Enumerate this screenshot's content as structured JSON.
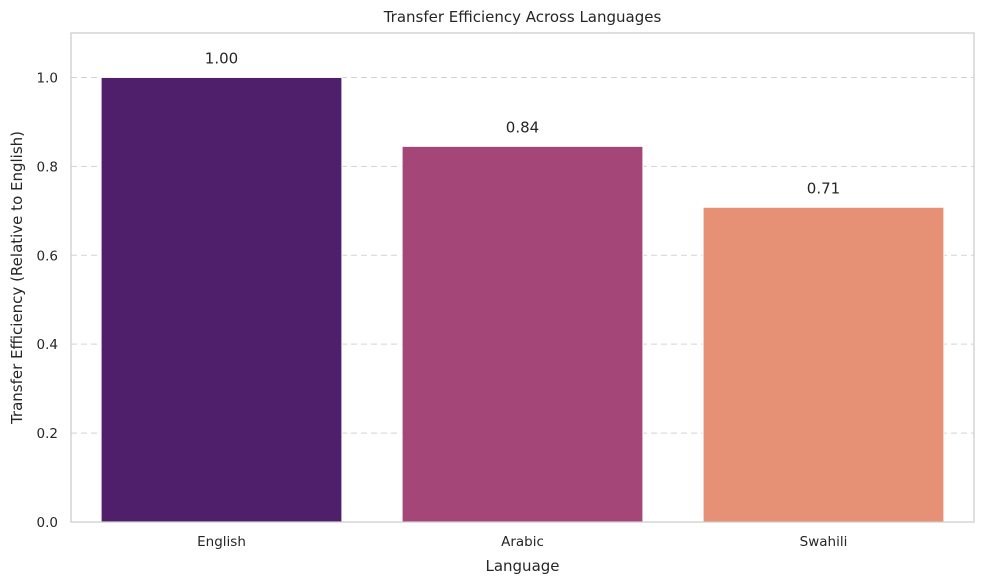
{
  "chart_data": {
    "type": "bar",
    "title": "Transfer Efficiency Across Languages",
    "xlabel": "Language",
    "ylabel": "Transfer Efficiency (Relative to English)",
    "categories": [
      "English",
      "Arabic",
      "Swahili"
    ],
    "values": [
      1.0,
      0.845,
      0.708
    ],
    "data_labels": [
      "1.00",
      "0.84",
      "0.71"
    ],
    "colors": [
      "#4f1f6c",
      "#a44677",
      "#e69076"
    ],
    "ylim": [
      0,
      1.1
    ],
    "yticks": [
      0.0,
      0.2,
      0.4,
      0.6,
      0.8,
      1.0
    ],
    "ytick_labels": [
      "0.0",
      "0.2",
      "0.4",
      "0.6",
      "0.8",
      "1.0"
    ],
    "grid": "y-dashed",
    "legend": "none"
  }
}
